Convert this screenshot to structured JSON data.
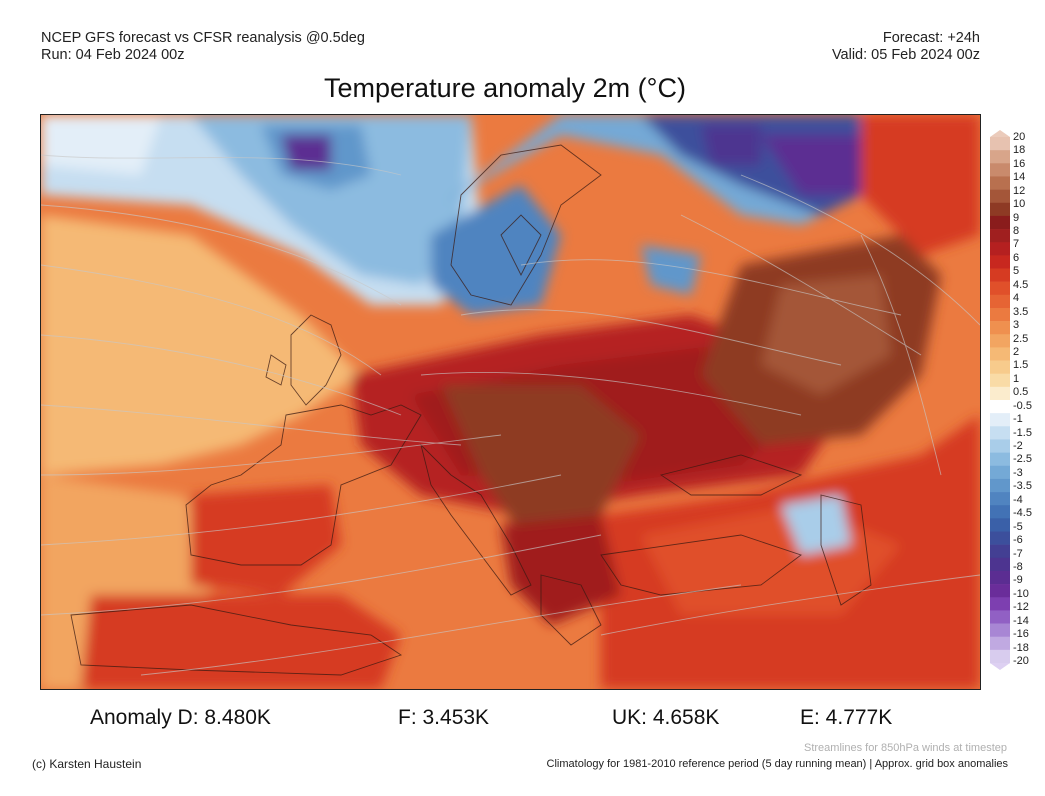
{
  "header": {
    "left_line1": "NCEP GFS forecast vs CFSR reanalysis @0.5deg",
    "left_line2": "Run: 04 Feb 2024 00z",
    "right_line1": "Forecast: +24h",
    "right_line2": "Valid: 05 Feb 2024 00z"
  },
  "title": "Temperature anomaly 2m (°C)",
  "colorbar": {
    "ticks": [
      "20",
      "18",
      "16",
      "14",
      "12",
      "10",
      "9",
      "8",
      "7",
      "6",
      "5",
      "4.5",
      "4",
      "3.5",
      "3",
      "2.5",
      "2",
      "1.5",
      "1",
      "0.5",
      "-0.5",
      "-1",
      "-1.5",
      "-2",
      "-2.5",
      "-3",
      "-3.5",
      "-4",
      "-4.5",
      "-5",
      "-6",
      "-7",
      "-8",
      "-9",
      "-10",
      "-12",
      "-14",
      "-16",
      "-18",
      "-20"
    ],
    "colors": [
      "#e7c2b0",
      "#d8a58a",
      "#c98a6c",
      "#b8704f",
      "#a45639",
      "#8e3a24",
      "#8a1c1c",
      "#a01f1f",
      "#b52020",
      "#c8281f",
      "#d63b22",
      "#e0502a",
      "#e66434",
      "#eb7a40",
      "#ef904f",
      "#f2a561",
      "#f5b975",
      "#f7cb8c",
      "#f9dba6",
      "#fbeccd",
      "#ffffff",
      "#e3eef8",
      "#c6def1",
      "#a9cde9",
      "#8cbbe0",
      "#74a9d6",
      "#6197cb",
      "#5084c0",
      "#4272b5",
      "#3a60a8",
      "#3c4f9c",
      "#433f93",
      "#4d3490",
      "#5b2d92",
      "#6a2d9a",
      "#7d3fb0",
      "#9160c4",
      "#a886d4",
      "#c0a9e1",
      "#d8ccee"
    ],
    "top_arrow_color": "#ebcbbb",
    "bottom_arrow_color": "#ddd0f2"
  },
  "stats": {
    "s1": "Anomaly D: 8.480K",
    "s2": "F: 3.453K",
    "s3": "UK: 4.658K",
    "s4": "E: 4.777K"
  },
  "footer": {
    "stream_note": "Streamlines for 850hPa winds at timestep",
    "credit": "(c) Karsten Haustein",
    "clim": "Climatology for 1981-2010 reference period (5 day running mean) | Approx. grid box anomalies"
  }
}
